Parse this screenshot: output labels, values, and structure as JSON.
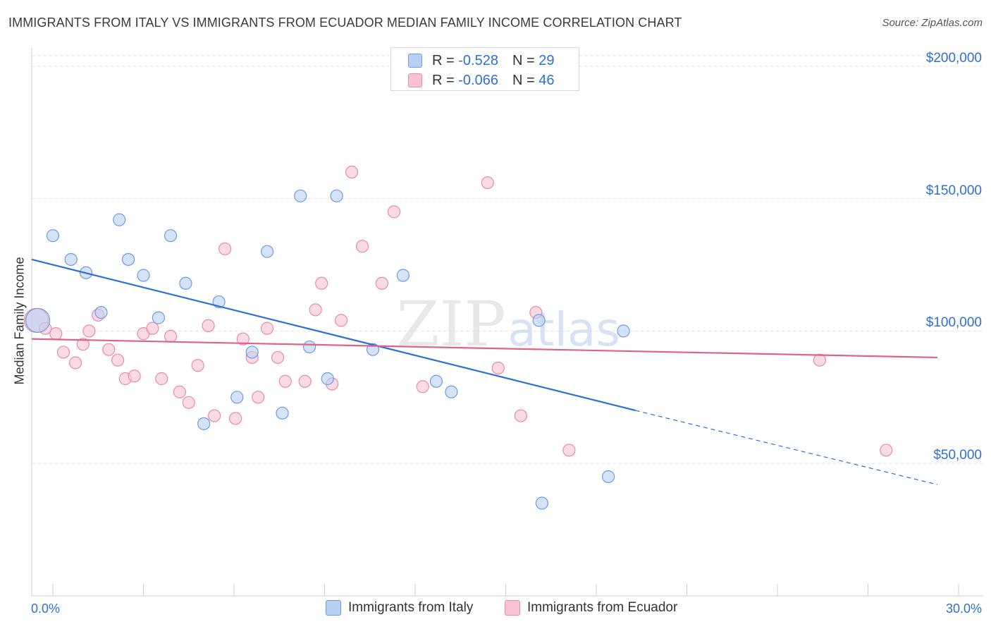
{
  "header": {
    "title": "IMMIGRANTS FROM ITALY VS IMMIGRANTS FROM ECUADOR MEDIAN FAMILY INCOME CORRELATION CHART",
    "source": "Source: ZipAtlas.com"
  },
  "colors": {
    "italy_fill": "#b8d0f3",
    "italy_stroke": "#6f9ae0",
    "italy_line": "#2f6fd0",
    "ecuador_fill": "#f7c3d3",
    "ecuador_stroke": "#e98aa8",
    "ecuador_line": "#e0618a",
    "axis_text": "#2f6fd0",
    "grid": "#e3e3e3"
  },
  "legend_top": {
    "rows": [
      {
        "r_label": "R =",
        "r_value": "-0.528",
        "n_label": "N =",
        "n_value": "29"
      },
      {
        "r_label": "R =",
        "r_value": "-0.066",
        "n_label": "N =",
        "n_value": "46"
      }
    ]
  },
  "chart_data": {
    "type": "scatter",
    "title": "IMMIGRANTS FROM ITALY VS IMMIGRANTS FROM ECUADOR MEDIAN FAMILY INCOME CORRELATION CHART",
    "xlabel": "",
    "ylabel": "Median Family Income",
    "xlim": [
      0,
      30
    ],
    "ylim": [
      0,
      205000
    ],
    "x_tick_labels": [
      "0.0%",
      "30.0%"
    ],
    "y_ticks": [
      {
        "value": 50000,
        "label": "$50,000"
      },
      {
        "value": 100000,
        "label": "$100,000"
      },
      {
        "value": 150000,
        "label": "$150,000"
      },
      {
        "value": 200000,
        "label": "$200,000"
      }
    ],
    "watermark": {
      "main": "ZIP",
      "sub": "atlas"
    },
    "series": [
      {
        "name": "Immigrants from Italy",
        "r": -0.528,
        "n": 29,
        "points": [
          {
            "x": 0.2,
            "y": 104000,
            "size": "large"
          },
          {
            "x": 0.7,
            "y": 136000
          },
          {
            "x": 1.3,
            "y": 127000
          },
          {
            "x": 1.8,
            "y": 122000
          },
          {
            "x": 2.3,
            "y": 107000
          },
          {
            "x": 2.9,
            "y": 142000
          },
          {
            "x": 3.2,
            "y": 127000
          },
          {
            "x": 3.7,
            "y": 121000
          },
          {
            "x": 4.2,
            "y": 105000
          },
          {
            "x": 4.6,
            "y": 136000
          },
          {
            "x": 5.1,
            "y": 118000
          },
          {
            "x": 5.7,
            "y": 65000
          },
          {
            "x": 6.2,
            "y": 111000
          },
          {
            "x": 6.8,
            "y": 75000
          },
          {
            "x": 7.3,
            "y": 92000
          },
          {
            "x": 7.8,
            "y": 130000
          },
          {
            "x": 8.3,
            "y": 69000
          },
          {
            "x": 8.9,
            "y": 151000
          },
          {
            "x": 9.2,
            "y": 94000
          },
          {
            "x": 9.8,
            "y": 82000
          },
          {
            "x": 10.1,
            "y": 151000
          },
          {
            "x": 11.3,
            "y": 93000
          },
          {
            "x": 12.3,
            "y": 121000
          },
          {
            "x": 13.4,
            "y": 81000
          },
          {
            "x": 13.9,
            "y": 77000
          },
          {
            "x": 16.8,
            "y": 104000
          },
          {
            "x": 16.9,
            "y": 35000
          },
          {
            "x": 19.1,
            "y": 45000
          },
          {
            "x": 19.6,
            "y": 100000
          }
        ],
        "trend": {
          "x1": 0,
          "y1": 127000,
          "x2": 20.0,
          "y2": 70000,
          "dash_to_x": 30,
          "dash_to_y": 42000
        }
      },
      {
        "name": "Immigrants from Ecuador",
        "r": -0.066,
        "n": 46,
        "points": [
          {
            "x": 0.15,
            "y": 104000,
            "size": "large"
          },
          {
            "x": 0.45,
            "y": 101000
          },
          {
            "x": 0.8,
            "y": 99000
          },
          {
            "x": 1.05,
            "y": 92000
          },
          {
            "x": 1.45,
            "y": 88000
          },
          {
            "x": 1.7,
            "y": 95000
          },
          {
            "x": 1.9,
            "y": 100000
          },
          {
            "x": 2.2,
            "y": 106000
          },
          {
            "x": 2.55,
            "y": 93000
          },
          {
            "x": 2.85,
            "y": 89000
          },
          {
            "x": 3.1,
            "y": 82000
          },
          {
            "x": 3.4,
            "y": 83000
          },
          {
            "x": 3.7,
            "y": 99000
          },
          {
            "x": 4.0,
            "y": 101000
          },
          {
            "x": 4.3,
            "y": 82000
          },
          {
            "x": 4.6,
            "y": 98000
          },
          {
            "x": 4.9,
            "y": 77000
          },
          {
            "x": 5.2,
            "y": 73000
          },
          {
            "x": 5.5,
            "y": 87000
          },
          {
            "x": 5.85,
            "y": 102000
          },
          {
            "x": 6.05,
            "y": 68000
          },
          {
            "x": 6.4,
            "y": 131000
          },
          {
            "x": 6.75,
            "y": 67000
          },
          {
            "x": 7.0,
            "y": 97000
          },
          {
            "x": 7.3,
            "y": 90000
          },
          {
            "x": 7.5,
            "y": 75000
          },
          {
            "x": 7.8,
            "y": 101000
          },
          {
            "x": 8.15,
            "y": 90000
          },
          {
            "x": 8.4,
            "y": 81000
          },
          {
            "x": 9.05,
            "y": 81000
          },
          {
            "x": 9.4,
            "y": 108000
          },
          {
            "x": 9.6,
            "y": 118000
          },
          {
            "x": 9.95,
            "y": 80000
          },
          {
            "x": 10.25,
            "y": 104000
          },
          {
            "x": 10.6,
            "y": 160000
          },
          {
            "x": 10.95,
            "y": 132000
          },
          {
            "x": 11.6,
            "y": 118000
          },
          {
            "x": 12.0,
            "y": 145000
          },
          {
            "x": 12.95,
            "y": 79000
          },
          {
            "x": 15.1,
            "y": 156000
          },
          {
            "x": 15.45,
            "y": 86000
          },
          {
            "x": 16.2,
            "y": 68000
          },
          {
            "x": 16.7,
            "y": 107000
          },
          {
            "x": 17.8,
            "y": 55000
          },
          {
            "x": 26.1,
            "y": 89000
          },
          {
            "x": 28.3,
            "y": 55000
          }
        ],
        "trend": {
          "x1": 0,
          "y1": 97000,
          "x2": 30,
          "y2": 90000
        }
      }
    ]
  },
  "bottom_legend": {
    "items": [
      "Immigrants from Italy",
      "Immigrants from Ecuador"
    ]
  }
}
